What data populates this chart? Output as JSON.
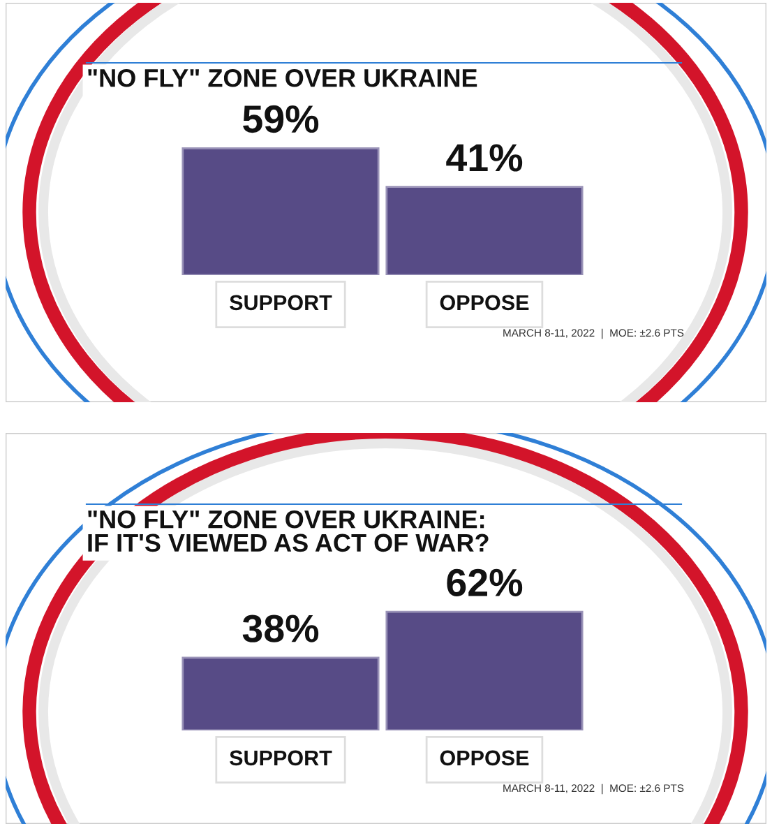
{
  "chart_data": [
    {
      "type": "bar",
      "title": "\"NO FLY\" ZONE OVER UKRAINE",
      "categories": [
        "SUPPORT",
        "OPPOSE"
      ],
      "values": [
        59,
        41
      ],
      "value_labels": [
        "59%",
        "41%"
      ],
      "color": "#574b86",
      "annotations": [
        "MARCH 8-11, 2022  |  MOE: ±2.6 PTS"
      ],
      "grid": false,
      "legend": false
    },
    {
      "type": "bar",
      "title": "\"NO FLY\" ZONE OVER UKRAINE:\nIF IT'S VIEWED AS ACT OF WAR?",
      "categories": [
        "SUPPORT",
        "OPPOSE"
      ],
      "values": [
        38,
        62
      ],
      "value_labels": [
        "38%",
        "62%"
      ],
      "color": "#574b86",
      "annotations": [
        "MARCH 8-11, 2022  |  MOE: ±2.6 PTS"
      ],
      "grid": false,
      "legend": false
    }
  ]
}
